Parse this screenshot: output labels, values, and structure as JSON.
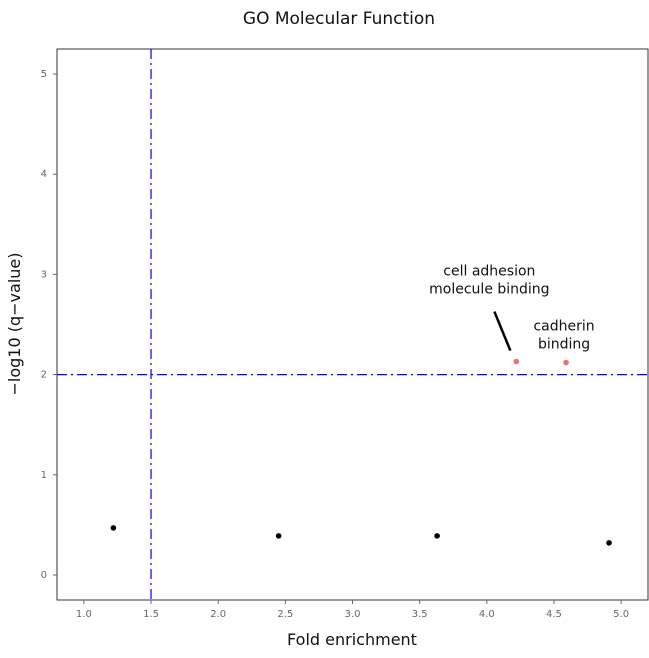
{
  "chart_data": {
    "type": "scatter",
    "title": "GO Molecular Function",
    "xlabel": "Fold enrichment",
    "ylabel": "−log10 (q−value)",
    "xlim": [
      0.8,
      5.2
    ],
    "ylim": [
      -0.25,
      5.25
    ],
    "x_ticks": [
      1.0,
      1.5,
      2.0,
      2.5,
      3.0,
      3.5,
      4.0,
      4.5,
      5.0
    ],
    "y_ticks": [
      0,
      1,
      2,
      3,
      4,
      5
    ],
    "grid": false,
    "points": [
      {
        "x": 1.22,
        "y": 0.47,
        "color": "#000000",
        "label": ""
      },
      {
        "x": 2.45,
        "y": 0.39,
        "color": "#000000",
        "label": ""
      },
      {
        "x": 3.63,
        "y": 0.39,
        "color": "#000000",
        "label": ""
      },
      {
        "x": 4.91,
        "y": 0.32,
        "color": "#000000",
        "label": ""
      },
      {
        "x": 4.22,
        "y": 2.13,
        "color": "#e8756f",
        "label": "cell adhesion molecule binding"
      },
      {
        "x": 4.59,
        "y": 2.12,
        "color": "#e8756f",
        "label": "cadherin binding"
      }
    ],
    "reference_lines": {
      "vertical_x": 1.5,
      "horizontal_y": 2.0,
      "style": "dash-dot",
      "color": "#0000ff"
    },
    "annotations": [
      {
        "lines": [
          "cell adhesion",
          "molecule binding"
        ],
        "point_index": 4,
        "has_leader_line": true
      },
      {
        "lines": [
          "cadherin",
          "binding"
        ],
        "point_index": 5,
        "has_leader_line": false
      }
    ]
  }
}
